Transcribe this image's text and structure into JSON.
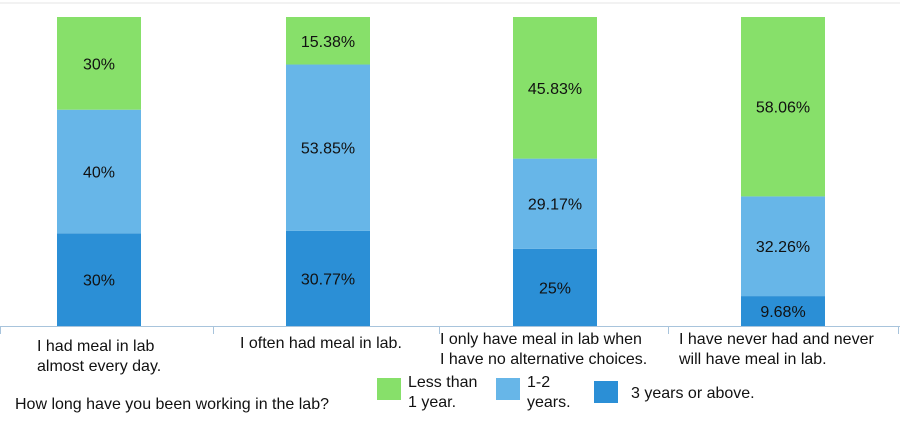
{
  "chart_data": {
    "type": "bar",
    "stacked": true,
    "percent_stacked": true,
    "categories": [
      [
        "I had meal in lab",
        "almost every day."
      ],
      [
        "I often had meal in lab."
      ],
      [
        "I only have meal in lab when",
        "I have no alternative choices."
      ],
      [
        "I have never had and never",
        "will have meal in lab."
      ]
    ],
    "series": [
      {
        "name": "3 years or above.",
        "color": "#2b8fd6",
        "values": [
          30,
          30.77,
          25,
          9.68
        ],
        "labels": [
          "30%",
          "30.77%",
          "25%",
          "9.68%"
        ]
      },
      {
        "name": "1-2 years.",
        "color": "#67b6e8",
        "values": [
          40,
          53.85,
          29.17,
          32.26
        ],
        "labels": [
          "40%",
          "53.85%",
          "29.17%",
          "32.26%"
        ]
      },
      {
        "name": "Less than 1 year.",
        "color": "#87e06a",
        "values": [
          30,
          15.38,
          45.83,
          58.06
        ],
        "labels": [
          "30%",
          "15.38%",
          "45.83%",
          "58.06%"
        ]
      }
    ],
    "legend": {
      "title": "How long have you been working in the lab?",
      "items": [
        {
          "lines": [
            "Less than",
            "1 year."
          ],
          "color": "#87e06a"
        },
        {
          "lines": [
            "1-2",
            "years."
          ],
          "color": "#67b6e8"
        },
        {
          "lines": [
            "3 years or above."
          ],
          "color": "#2b8fd6"
        }
      ],
      "placement": "bottom"
    },
    "ylim": [
      0,
      100
    ],
    "grid": false
  }
}
